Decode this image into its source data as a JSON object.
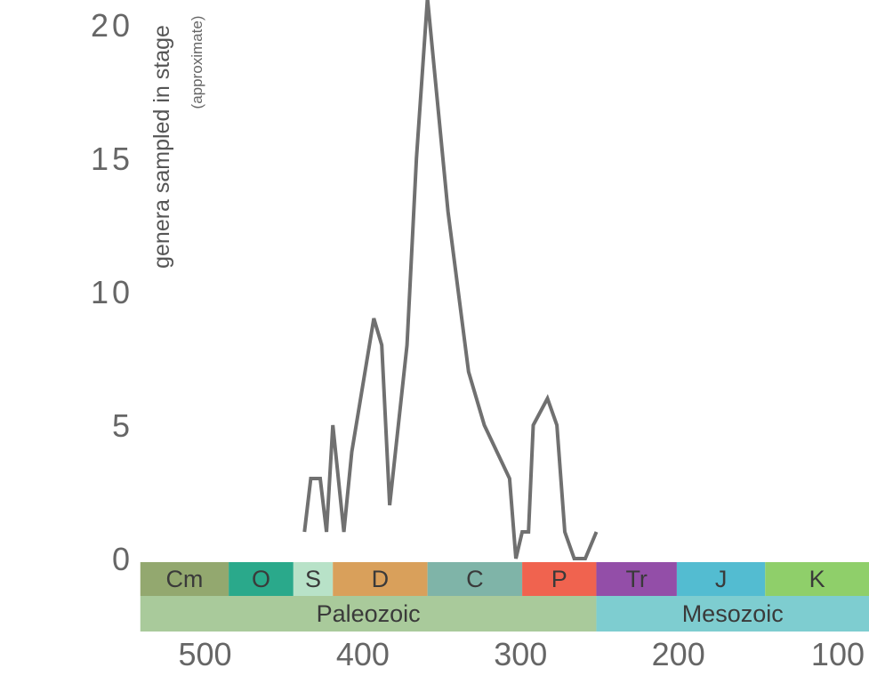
{
  "chart_data": {
    "type": "line",
    "ylabel": "genera sampled in stage",
    "ylabel_sub": "(approximate)",
    "ylim": [
      0,
      21
    ],
    "xlim": [
      540,
      100
    ],
    "y_ticks": [
      {
        "value": 0,
        "label": "0"
      },
      {
        "value": 5,
        "label": "5"
      },
      {
        "value": 10,
        "label": "10"
      },
      {
        "value": 15,
        "label": "15"
      },
      {
        "value": 20,
        "label": "20"
      }
    ],
    "x_ticks": [
      {
        "value": 500,
        "label": "500"
      },
      {
        "value": 400,
        "label": "400"
      },
      {
        "value": 300,
        "label": "300"
      },
      {
        "value": 200,
        "label": "200"
      },
      {
        "value": 100,
        "label": "100"
      }
    ],
    "line_color": "#707070",
    "series": [
      {
        "x": [
          437,
          433,
          427,
          423,
          419,
          412,
          407,
          393,
          388,
          383,
          372,
          366,
          359,
          346,
          333,
          323,
          307,
          303,
          299,
          295,
          292,
          283,
          277,
          272,
          266,
          259,
          252
        ],
        "y": [
          1,
          3,
          3,
          1,
          5,
          1,
          4,
          9,
          8,
          2,
          8,
          15,
          21,
          13,
          7,
          5,
          3,
          0,
          1,
          1,
          5,
          6,
          5,
          1,
          0,
          0,
          1
        ]
      }
    ],
    "periods": [
      {
        "label": "Cm",
        "start": 541,
        "end": 485,
        "color": "#93a86f"
      },
      {
        "label": "O",
        "start": 485,
        "end": 444,
        "color": "#2aa98b"
      },
      {
        "label": "S",
        "start": 444,
        "end": 419,
        "color": "#b8e2c8"
      },
      {
        "label": "D",
        "start": 419,
        "end": 359,
        "color": "#d9a05b"
      },
      {
        "label": "C",
        "start": 359,
        "end": 299,
        "color": "#7fb4a8"
      },
      {
        "label": "P",
        "start": 299,
        "end": 252,
        "color": "#f0634f"
      },
      {
        "label": "Tr",
        "start": 252,
        "end": 201,
        "color": "#934ea8"
      },
      {
        "label": "J",
        "start": 201,
        "end": 145,
        "color": "#53bcd1"
      },
      {
        "label": "K",
        "start": 145,
        "end": 66,
        "color": "#8fcf6a"
      }
    ],
    "eras": [
      {
        "label": "Paleozoic",
        "start": 541,
        "end": 252,
        "color": "#a9ca9b"
      },
      {
        "label": "Mesozoic",
        "start": 252,
        "end": 66,
        "color": "#7ecdd0"
      }
    ]
  }
}
